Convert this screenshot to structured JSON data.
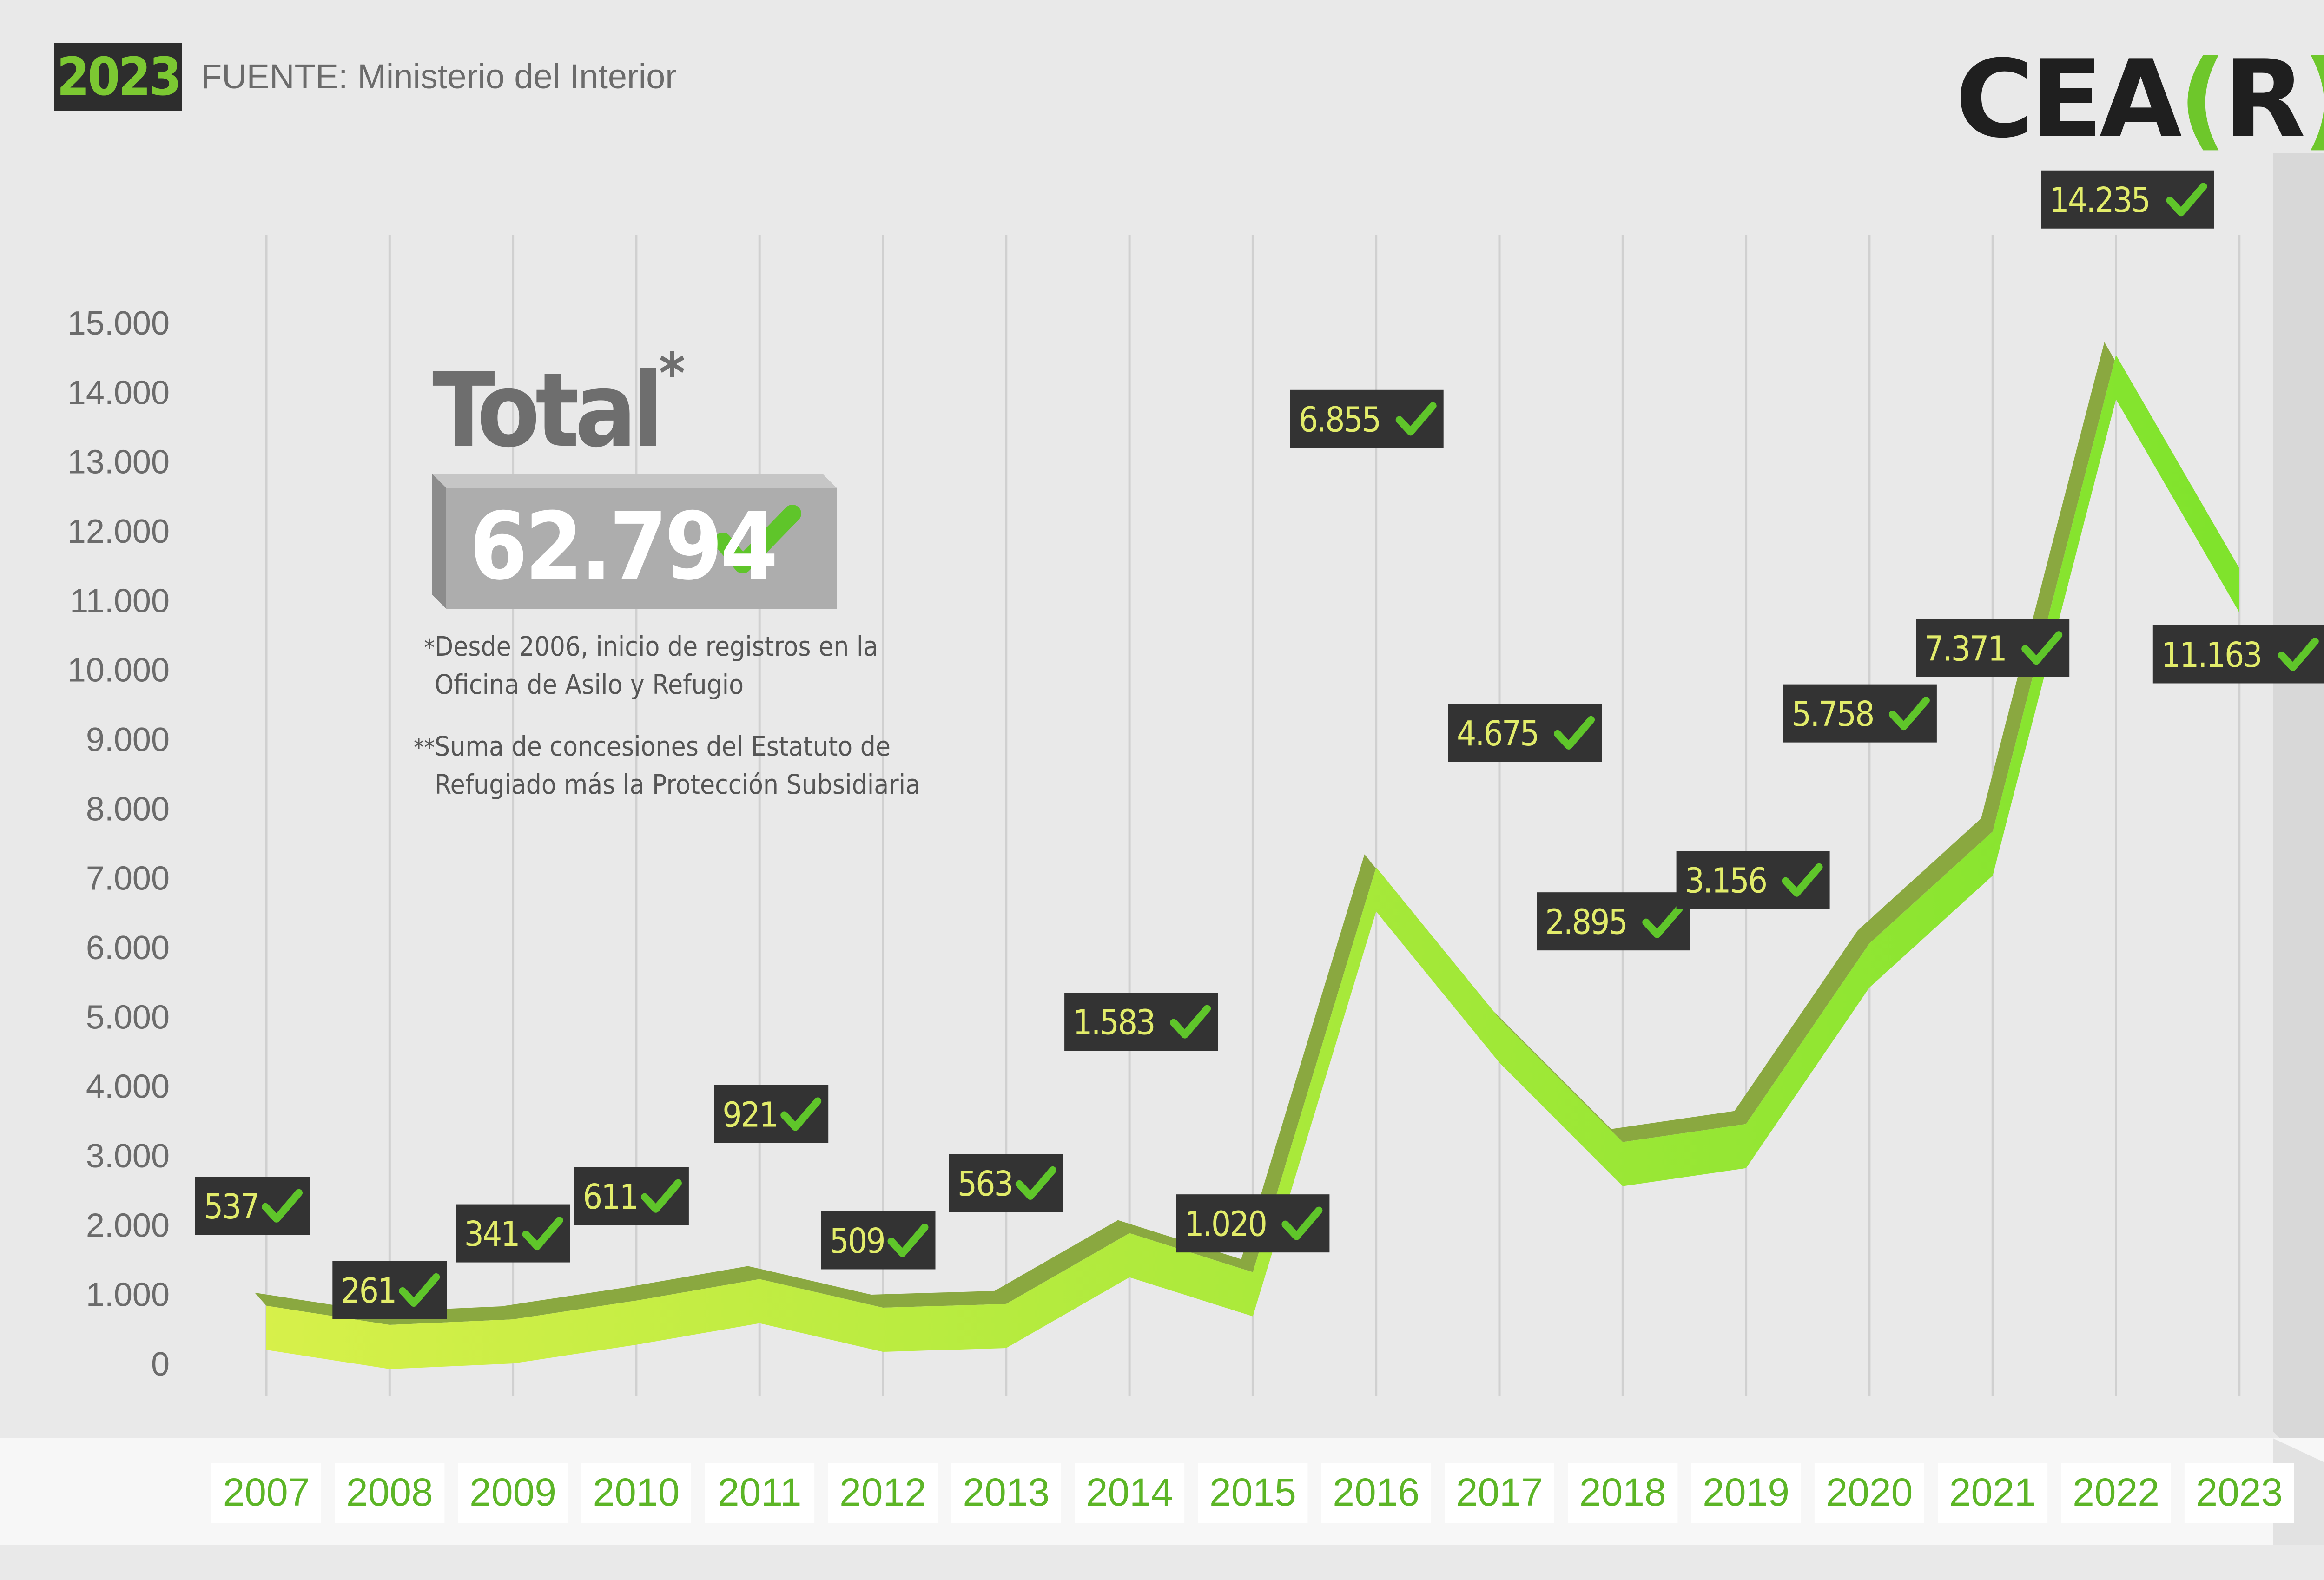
{
  "header": {
    "year_badge": "2023",
    "source": "FUENTE: Ministerio del Interior",
    "logo_text_left": "CEA",
    "logo_text_bracket_open": "(",
    "logo_text_r": "R",
    "logo_text_bracket_close": ")"
  },
  "summary": {
    "total_label": "Total",
    "total_mark": "*",
    "total_value": "62.794",
    "note1_mark": "*",
    "note1": "Desde 2006, inicio de registros en la Oficina de Asilo y Refugio",
    "note2_mark": "**",
    "note2": "Suma de concesiones del Estatuto de Refugiado más la Protección Subsidiaria"
  },
  "colors": {
    "background": "#e9e9e9",
    "line_light": "#d7f04a",
    "line_bright": "#7fe32c",
    "label_box": "#333333",
    "label_text": "#e2ec6a",
    "check": "#5fc52a",
    "year_text": "#5cb526",
    "tick_text": "#6b6b6b"
  },
  "chart_data": {
    "type": "line",
    "categories": [
      "2007",
      "2008",
      "2009",
      "2010",
      "2011",
      "2012",
      "2013",
      "2014",
      "2015",
      "2016",
      "2017",
      "2018",
      "2019",
      "2020",
      "2021",
      "2022",
      "2023"
    ],
    "values": [
      537,
      261,
      341,
      611,
      921,
      509,
      563,
      1583,
      1020,
      6855,
      4675,
      2895,
      3156,
      5758,
      7371,
      14235,
      11163
    ],
    "value_labels": [
      "537",
      "261",
      "341",
      "611",
      "921",
      "509",
      "563",
      "1.583",
      "1.020",
      "6.855",
      "4.675",
      "2.895",
      "3.156",
      "5.758",
      "7.371",
      "14.235",
      "11.163"
    ],
    "y_ticks": [
      "0",
      "1.000",
      "2.000",
      "3.000",
      "4.000",
      "5.000",
      "6.000",
      "7.000",
      "8.000",
      "9.000",
      "10.000",
      "11.000",
      "12.000",
      "13.000",
      "14.000",
      "15.000"
    ],
    "ylim": [
      0,
      15000
    ],
    "grid": "vertical",
    "icon": "check-icon"
  }
}
